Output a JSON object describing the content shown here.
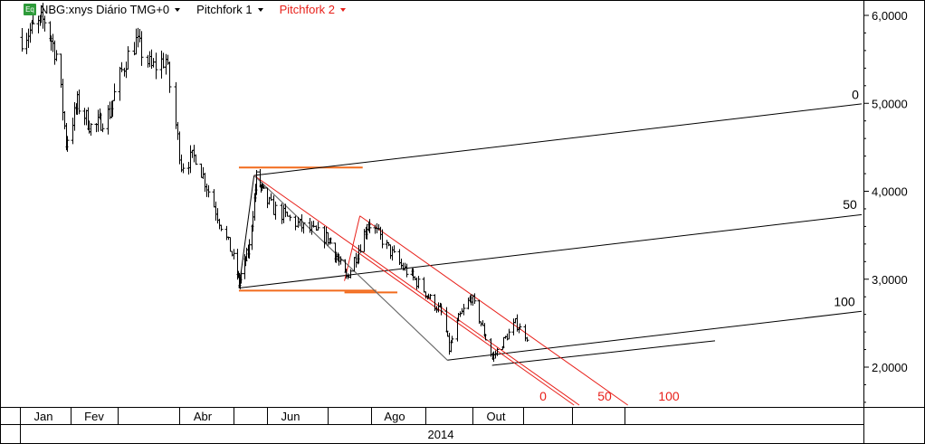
{
  "header": {
    "symbol_badge": "Eq",
    "title": "NBG:xnys Diário TMG+0",
    "pitchfork1_label": "Pitchfork 1",
    "pitchfork2_label": "Pitchfork 2",
    "pitchfork2_color": "#e8201a"
  },
  "chart_data": {
    "type": "ohlc",
    "title": "NBG:xnys Diário TMG+0",
    "xlabel": "2014",
    "ylabel": "",
    "ylim": [
      1.55,
      6.15
    ],
    "y_ticks": [
      "6,0000",
      "5,0000",
      "4,0000",
      "3,0000",
      "2,0000"
    ],
    "y_tick_values": [
      6,
      5,
      4,
      3,
      2
    ],
    "x_ticks": [
      "Jan",
      "Fev",
      "Abr",
      "Jun",
      "Ago",
      "Out"
    ],
    "year_label": "2014",
    "grid": false,
    "price_path": [
      {
        "date": "2014-01-02",
        "close": 5.75
      },
      {
        "date": "2014-01-16",
        "close": 5.95
      },
      {
        "date": "2014-01-24",
        "close": 5.5
      },
      {
        "date": "2014-01-29",
        "close": 4.55
      },
      {
        "date": "2014-02-05",
        "close": 5.0
      },
      {
        "date": "2014-02-14",
        "close": 4.7
      },
      {
        "date": "2014-02-24",
        "close": 4.9
      },
      {
        "date": "2014-03-05",
        "close": 5.5
      },
      {
        "date": "2014-03-10",
        "close": 5.7
      },
      {
        "date": "2014-03-18",
        "close": 5.4
      },
      {
        "date": "2014-03-25",
        "close": 5.5
      },
      {
        "date": "2014-03-27",
        "close": 5.2
      },
      {
        "date": "2014-04-02",
        "close": 4.3
      },
      {
        "date": "2014-04-10",
        "close": 4.4
      },
      {
        "date": "2014-04-18",
        "close": 3.95
      },
      {
        "date": "2014-04-28",
        "close": 3.4
      },
      {
        "date": "2014-05-06",
        "close": 2.95
      },
      {
        "date": "2014-05-16",
        "close": 3.4
      },
      {
        "date": "2014-05-22",
        "close": 4.15
      },
      {
        "date": "2014-06-04",
        "close": 3.8
      },
      {
        "date": "2014-06-18",
        "close": 3.6
      },
      {
        "date": "2014-07-02",
        "close": 3.45
      },
      {
        "date": "2014-07-14",
        "close": 3.0
      },
      {
        "date": "2014-07-22",
        "close": 3.3
      },
      {
        "date": "2014-07-30",
        "close": 3.65
      },
      {
        "date": "2014-08-07",
        "close": 3.45
      },
      {
        "date": "2014-08-18",
        "close": 3.15
      },
      {
        "date": "2014-08-28",
        "close": 2.95
      },
      {
        "date": "2014-09-05",
        "close": 2.75
      },
      {
        "date": "2014-09-12",
        "close": 2.6
      },
      {
        "date": "2014-09-16",
        "close": 2.2
      },
      {
        "date": "2014-09-22",
        "close": 2.55
      },
      {
        "date": "2014-09-30",
        "close": 2.8
      },
      {
        "date": "2014-10-06",
        "close": 2.5
      },
      {
        "date": "2014-10-13",
        "close": 2.1
      },
      {
        "date": "2014-10-20",
        "close": 2.3
      },
      {
        "date": "2014-10-27",
        "close": 2.5
      },
      {
        "date": "2014-11-03",
        "close": 2.35
      }
    ],
    "annotations": {
      "pitchfork_1": {
        "color": "#000000",
        "pivot_a": {
          "date": "2014-05-06",
          "price": 2.9
        },
        "pivot_b": {
          "date": "2014-05-20",
          "price": 4.18
        },
        "pivot_c": {
          "date": "2014-09-15",
          "price": 2.08
        },
        "level_labels": [
          "0",
          "50",
          "100"
        ]
      },
      "pitchfork_2": {
        "color": "#e8201a",
        "pivot_a": {
          "date": "2014-05-20",
          "price": 4.18
        },
        "pivot_b": {
          "date": "2014-07-13",
          "price": 2.98
        },
        "pivot_c": {
          "date": "2014-07-24",
          "price": 3.72
        },
        "level_labels": [
          "0",
          "50",
          "100"
        ]
      },
      "horizontal_lines": [
        {
          "price": 4.27,
          "from": "2014-05-06",
          "to": "2014-07-26",
          "color": "#f26b1d"
        },
        {
          "price": 2.87,
          "from": "2014-05-06",
          "to": "2014-08-04",
          "color": "#f26b1d"
        },
        {
          "price": 2.85,
          "from": "2014-07-13",
          "to": "2014-08-16",
          "color": "#f26b1d"
        }
      ]
    }
  }
}
